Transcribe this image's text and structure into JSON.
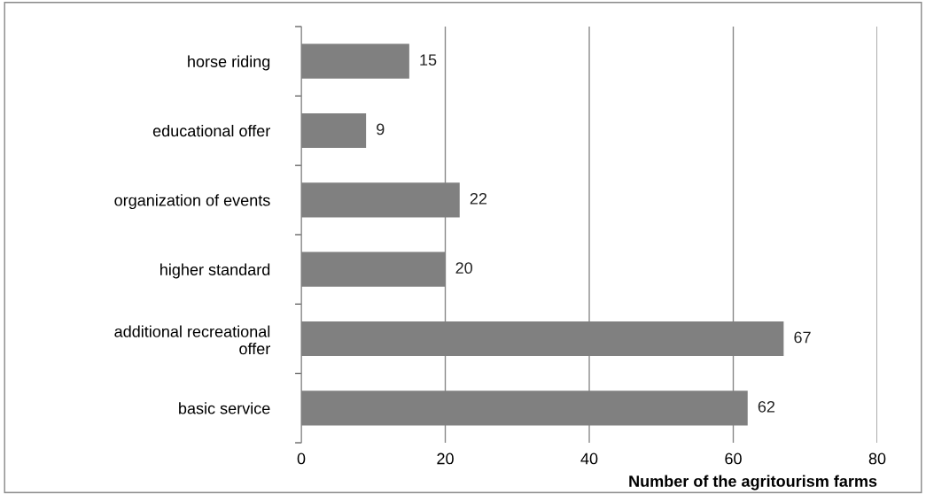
{
  "chart_data": {
    "type": "bar",
    "orientation": "horizontal",
    "categories": [
      "horse riding",
      "educational offer",
      "organization of events",
      "higher standard",
      "additional recreational\noffer",
      "basic service"
    ],
    "values": [
      15,
      9,
      22,
      20,
      67,
      62
    ],
    "color": "#808080",
    "xlim": [
      0,
      80
    ],
    "xticks": [
      0,
      20,
      40,
      60,
      80
    ],
    "xlabel": "Number of the agritourism farms",
    "grid": "x",
    "data_labels": true,
    "legend": false
  }
}
